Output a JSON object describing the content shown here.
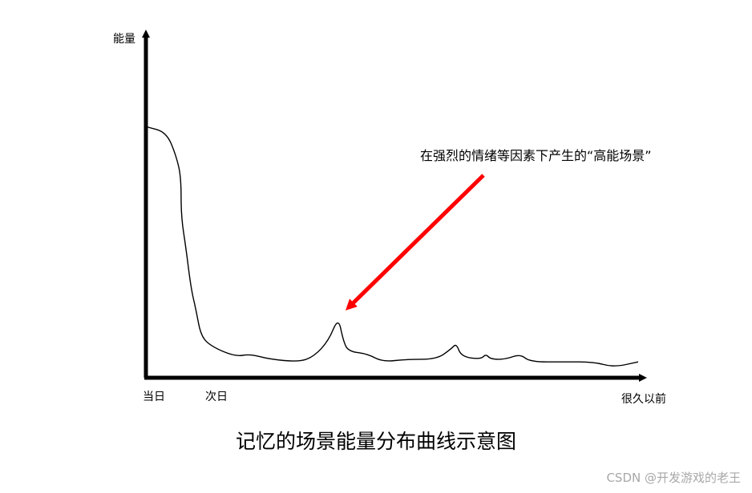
{
  "chart_data": {
    "type": "line",
    "title": "记忆的场景能量分布曲线示意图",
    "ylabel": "能量",
    "xlabel": "很久以前",
    "x_ticks": [
      "当日",
      "次日"
    ],
    "axis_numbers_shown": false,
    "grid": false,
    "legend": "none",
    "series": [
      {
        "color": "#000000",
        "points": [
          [
            0,
            0.95
          ],
          [
            0.04,
            0.93
          ],
          [
            0.06,
            0.84
          ],
          [
            0.07,
            0.76
          ],
          [
            0.07,
            0.61
          ],
          [
            0.08,
            0.49
          ],
          [
            0.09,
            0.34
          ],
          [
            0.1,
            0.26
          ],
          [
            0.11,
            0.16
          ],
          [
            0.13,
            0.12
          ],
          [
            0.18,
            0.08
          ],
          [
            0.21,
            0.09
          ],
          [
            0.25,
            0.07
          ],
          [
            0.31,
            0.06
          ],
          [
            0.34,
            0.08
          ],
          [
            0.37,
            0.14
          ],
          [
            0.39,
            0.23
          ],
          [
            0.4,
            0.14
          ],
          [
            0.41,
            0.1
          ],
          [
            0.45,
            0.09
          ],
          [
            0.48,
            0.06
          ],
          [
            0.53,
            0.07
          ],
          [
            0.59,
            0.07
          ],
          [
            0.62,
            0.11
          ],
          [
            0.63,
            0.13
          ],
          [
            0.64,
            0.08
          ],
          [
            0.68,
            0.07
          ],
          [
            0.69,
            0.09
          ],
          [
            0.7,
            0.07
          ],
          [
            0.73,
            0.07
          ],
          [
            0.76,
            0.09
          ],
          [
            0.78,
            0.06
          ],
          [
            0.85,
            0.06
          ],
          [
            0.91,
            0.06
          ],
          [
            0.95,
            0.04
          ],
          [
            1.0,
            0.06
          ]
        ]
      }
    ],
    "annotation": {
      "text": "在强烈的情绪等因素下产生的“高能场景”",
      "arrow_color": "#ff0000",
      "target_x": 0.39
    }
  },
  "watermark": "CSDN @开发游戏的老王"
}
